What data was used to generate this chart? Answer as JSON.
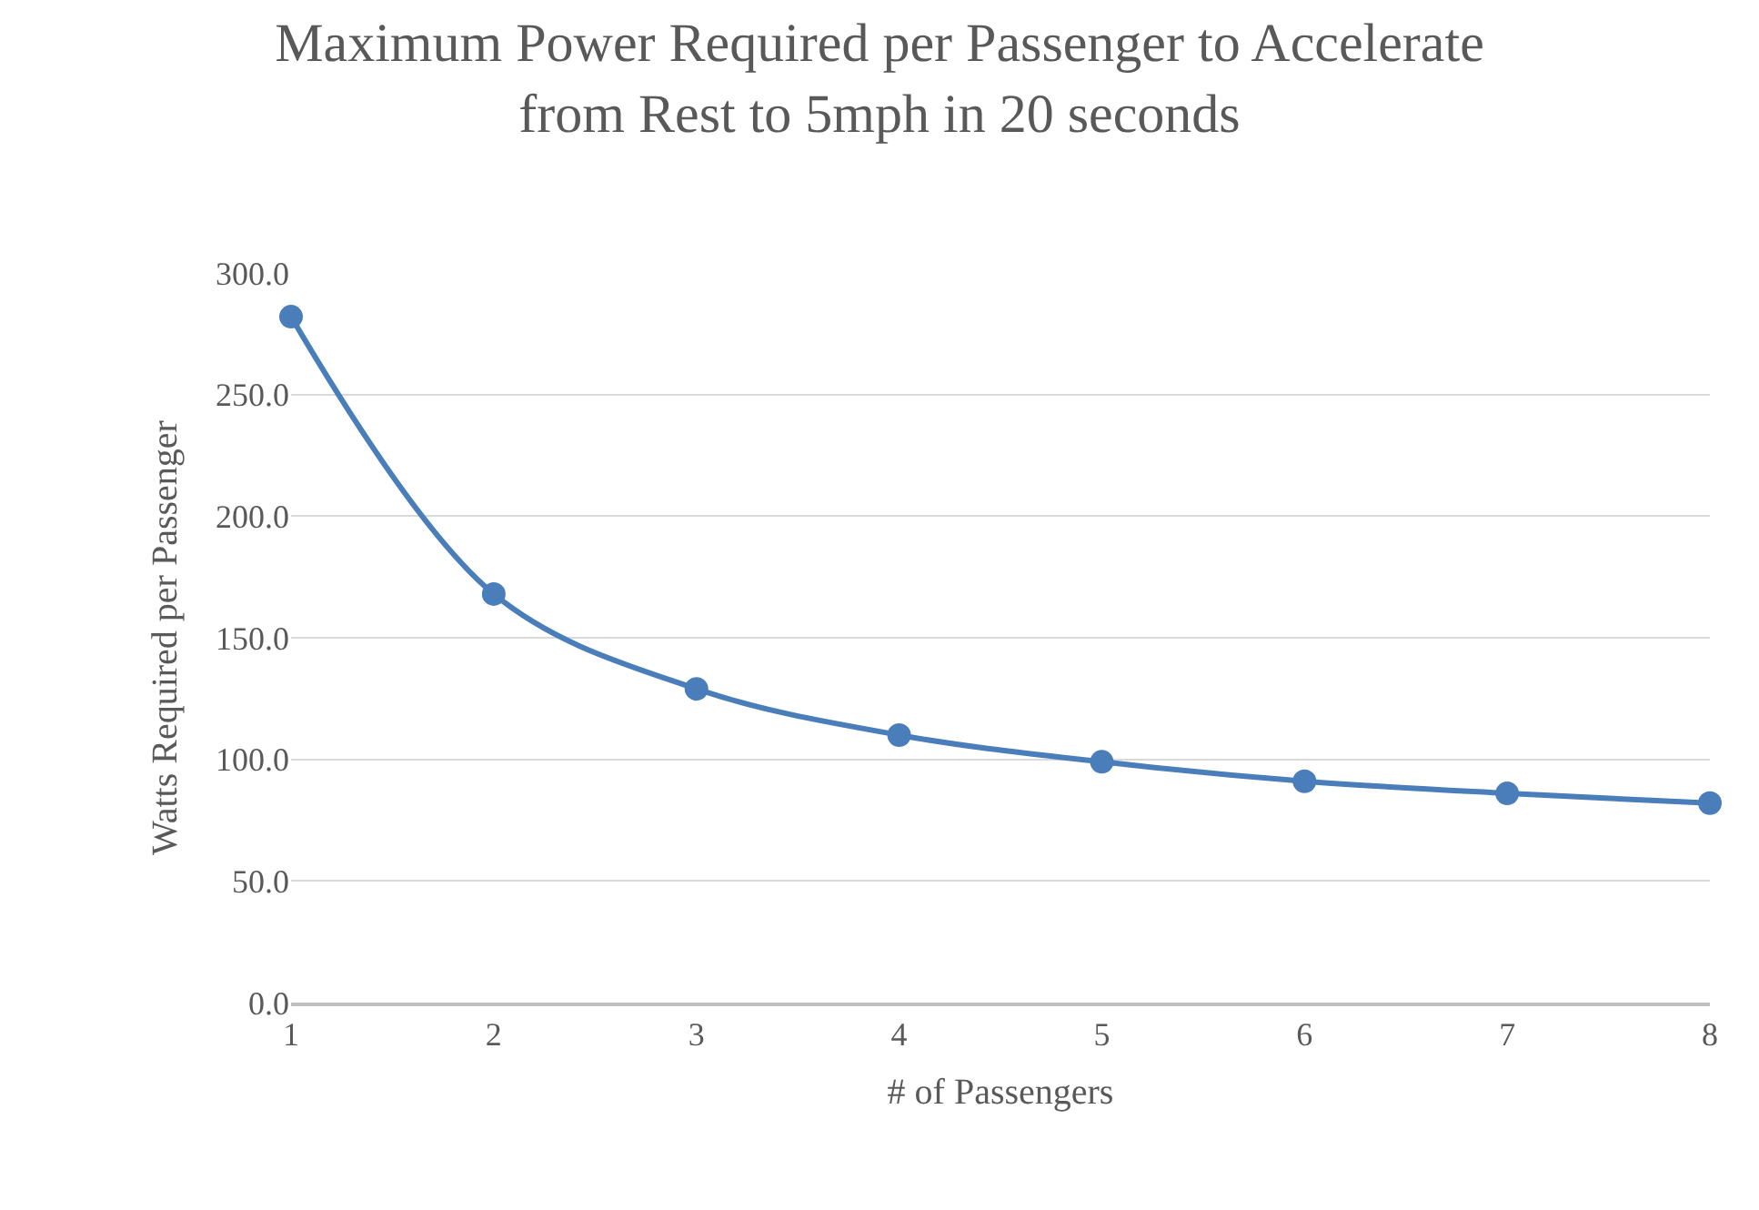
{
  "chart_data": {
    "type": "line",
    "title": "Maximum Power Required per Passenger to Accelerate from Rest to 5mph in 20 seconds",
    "xlabel": "# of Passengers",
    "ylabel": "Watts Required per Passenger",
    "x": [
      1,
      2,
      3,
      4,
      5,
      6,
      7,
      8
    ],
    "series": [
      {
        "color": "#4a7ebb",
        "values": [
          282,
          168,
          129,
          110,
          99,
          91,
          86,
          82
        ]
      }
    ],
    "xlim": [
      1,
      8
    ],
    "xticks": [
      1,
      2,
      3,
      4,
      5,
      6,
      7,
      8
    ],
    "ylim": [
      0,
      300
    ],
    "yticks": [
      {
        "value": 0,
        "label": "0.0"
      },
      {
        "value": 50,
        "label": "50.0"
      },
      {
        "value": 100,
        "label": "100.0"
      },
      {
        "value": 150,
        "label": "150.0"
      },
      {
        "value": 200,
        "label": "200.0"
      },
      {
        "value": 250,
        "label": "250.0"
      },
      {
        "value": 300,
        "label": "300.0"
      }
    ],
    "grid": "y",
    "marker": "circle",
    "line_style": "solid",
    "legend": false
  }
}
